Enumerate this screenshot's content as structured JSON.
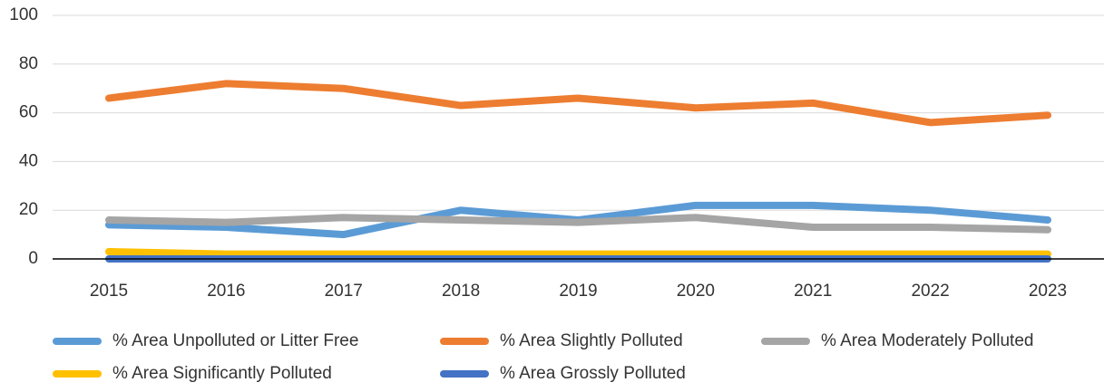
{
  "chart_data": {
    "type": "line",
    "categories": [
      "2015",
      "2016",
      "2017",
      "2018",
      "2019",
      "2020",
      "2021",
      "2022",
      "2023"
    ],
    "series": [
      {
        "name": "% Area Unpolluted or Litter Free",
        "color": "#5b9bd5",
        "values": [
          14,
          13,
          10,
          20,
          16,
          22,
          22,
          20,
          16
        ]
      },
      {
        "name": "% Area Slightly Polluted",
        "color": "#ed7d31",
        "values": [
          66,
          72,
          70,
          63,
          66,
          62,
          64,
          56,
          59
        ]
      },
      {
        "name": "% Area Moderately Polluted",
        "color": "#a5a5a5",
        "values": [
          16,
          15,
          17,
          16,
          15,
          17,
          13,
          13,
          12
        ]
      },
      {
        "name": "% Area Significantly Polluted",
        "color": "#ffc000",
        "values": [
          3,
          2,
          2,
          2,
          2,
          2,
          2,
          2,
          2
        ]
      },
      {
        "name": "% Area Grossly Polluted",
        "color": "#4472c4",
        "values": [
          0,
          0,
          0,
          0,
          0,
          0,
          0,
          0,
          0
        ]
      }
    ],
    "ylim": [
      0,
      100
    ],
    "yticks": [
      0,
      20,
      40,
      60,
      80,
      100
    ],
    "grid": true
  }
}
